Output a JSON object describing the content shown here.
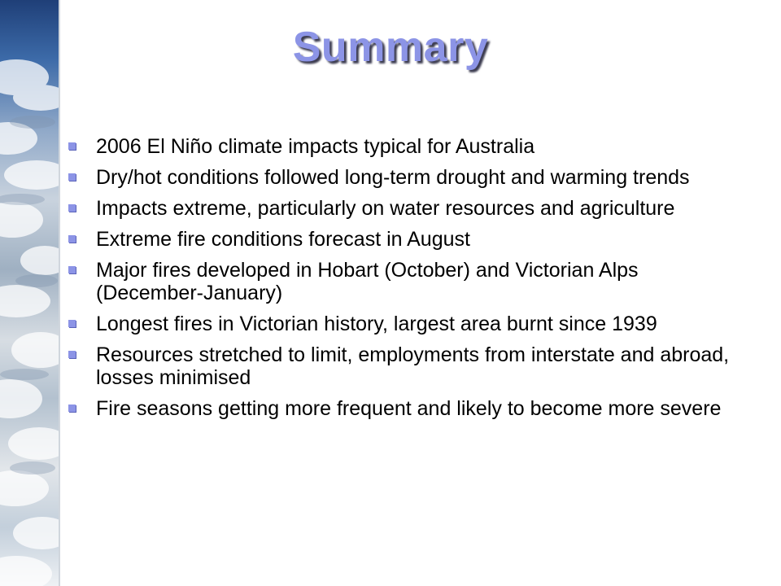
{
  "slide": {
    "title": "Summary",
    "bullets": [
      "2006 El Niño climate impacts typical for Australia",
      "Dry/hot conditions followed long-term drought and warming trends",
      "Impacts extreme, particularly on water resources and agriculture",
      "Extreme fire conditions forecast in August",
      "Major fires developed in Hobart (October) and Victorian Alps (December-January)",
      "Longest fires in Victorian history, largest area burnt since 1939",
      "Resources stretched to limit, employments from interstate and abroad, losses minimised",
      "Fire seasons getting more frequent and likely to become more severe"
    ]
  },
  "colors": {
    "title": "#8c94e6",
    "bullet_marker": "#8c94e6",
    "text": "#000000"
  }
}
